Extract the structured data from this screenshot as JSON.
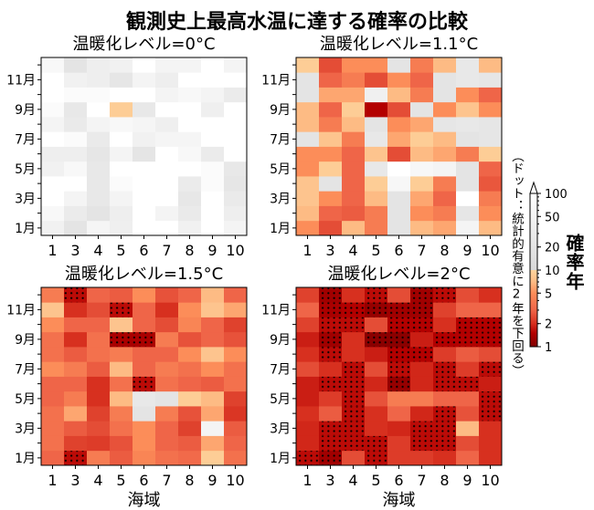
{
  "title": "観測史上最高水温に達する確率の比較",
  "colorbar": {
    "label": "確率年",
    "note": "（ドット：統計的有意に2年を下回る）",
    "ticks": [
      "1",
      "2",
      "5",
      "10",
      "20",
      "50",
      "100"
    ],
    "scale": "log",
    "range": [
      1,
      100
    ],
    "colors": {
      "1": "#7f0000",
      "1.5": "#b30000",
      "2": "#d7301f",
      "3": "#ef6548",
      "5": "#fc8d59",
      "7": "#fdbb84",
      "10": "#fdd49e",
      "10+": "#d9d9d9",
      "100": "#ffffff"
    }
  },
  "chart_data": [
    {
      "type": "heatmap",
      "title": "温暖化レベル=0°C",
      "xlabel": "",
      "x_ticks": [
        "1",
        "3",
        "4",
        "5",
        "6",
        "7",
        "8",
        "9",
        "10"
      ],
      "y_ticks": [
        "1月",
        "3月",
        "5月",
        "7月",
        "9月",
        "11月"
      ],
      "rows": "months 1-12 (bottom to top)",
      "values": [
        [
          42,
          20,
          55,
          38,
          100,
          100,
          42,
          100,
          50
        ],
        [
          65,
          30,
          20,
          35,
          100,
          50,
          28,
          100,
          35
        ],
        [
          100,
          50,
          25,
          50,
          100,
          100,
          24,
          100,
          28
        ],
        [
          100,
          100,
          25,
          80,
          100,
          100,
          30,
          80,
          22
        ],
        [
          42,
          65,
          25,
          100,
          100,
          100,
          100,
          80,
          25
        ],
        [
          35,
          35,
          22,
          50,
          21,
          100,
          65,
          30,
          100
        ],
        [
          100,
          80,
          28,
          100,
          42,
          55,
          55,
          100,
          100
        ],
        [
          50,
          28,
          50,
          65,
          55,
          38,
          100,
          100,
          100
        ],
        [
          80,
          25,
          100,
          9,
          25,
          100,
          100,
          38,
          100
        ],
        [
          100,
          80,
          80,
          100,
          100,
          50,
          65,
          50,
          30
        ],
        [
          100,
          42,
          35,
          22,
          50,
          35,
          100,
          100,
          100
        ],
        [
          65,
          20,
          35,
          42,
          100,
          50,
          50,
          100,
          50
        ]
      ],
      "significant": []
    },
    {
      "type": "heatmap",
      "title": "温暖化レベル=1.1°C",
      "xlabel": "",
      "x_ticks": [
        "1",
        "3",
        "4",
        "5",
        "6",
        "7",
        "8",
        "9",
        "10"
      ],
      "y_ticks": [
        "1月",
        "3月",
        "5月",
        "7月",
        "9月",
        "11月"
      ],
      "values": [
        [
          5,
          2.5,
          7,
          4,
          20,
          7,
          6,
          50,
          7
        ],
        [
          7,
          3,
          2.8,
          4,
          20,
          5,
          4,
          22,
          5
        ],
        [
          8,
          5,
          3,
          7,
          20,
          6,
          3,
          100,
          4
        ],
        [
          8,
          20,
          3,
          9,
          60,
          9,
          4,
          20,
          2.7
        ],
        [
          5,
          9,
          3,
          25,
          100,
          60,
          50,
          20,
          3
        ],
        [
          5,
          5,
          3,
          8,
          2.5,
          7,
          6,
          4,
          9
        ],
        [
          20,
          8,
          4,
          25,
          6,
          9,
          7,
          20,
          22
        ],
        [
          7,
          4,
          7,
          20,
          5,
          6,
          22,
          25,
          22
        ],
        [
          7,
          3,
          9,
          1.5,
          2.5,
          20,
          5,
          8,
          5
        ],
        [
          20,
          6,
          6,
          40,
          7,
          4,
          20,
          5,
          3
        ],
        [
          20,
          3,
          4,
          2.5,
          5,
          3,
          20,
          25,
          22
        ],
        [
          9,
          2.5,
          5,
          5,
          20,
          4,
          7,
          25,
          7
        ]
      ],
      "significant": []
    },
    {
      "type": "heatmap",
      "title": "温暖化レベル=1.5°C",
      "xlabel": "海域",
      "x_ticks": [
        "1",
        "3",
        "4",
        "5",
        "6",
        "7",
        "8",
        "9",
        "10"
      ],
      "y_ticks": [
        "1月",
        "3月",
        "5月",
        "7月",
        "9月",
        "11月"
      ],
      "values": [
        [
          3,
          1.6,
          4,
          2.8,
          4.5,
          3.5,
          3.2,
          9,
          3.5
        ],
        [
          3.5,
          2.3,
          2.2,
          2.6,
          5,
          3,
          2.8,
          6,
          3
        ],
        [
          3.5,
          2.8,
          2.5,
          3.5,
          5,
          3,
          2.3,
          50,
          2.8
        ],
        [
          3.5,
          6,
          2.3,
          4,
          20,
          4,
          2.6,
          6,
          2.1
        ],
        [
          3,
          4,
          2,
          7,
          25,
          20,
          9,
          7,
          2.3
        ],
        [
          3,
          3,
          2,
          3.5,
          1.6,
          3.5,
          3,
          2.8,
          3.5
        ],
        [
          5,
          4,
          2.8,
          7,
          3,
          4,
          3.5,
          5,
          3.5
        ],
        [
          3.5,
          2.8,
          3.5,
          4,
          3,
          3,
          5,
          8,
          5
        ],
        [
          3.5,
          2,
          3.5,
          1.4,
          1.4,
          4,
          2.6,
          3,
          2.6
        ],
        [
          5,
          3,
          3,
          8,
          3,
          2.5,
          4.5,
          3,
          2.3
        ],
        [
          8,
          2,
          2.5,
          1.6,
          3,
          2,
          5,
          8,
          6
        ],
        [
          4,
          1.6,
          3,
          2.8,
          5,
          2.6,
          3,
          7,
          3
        ]
      ],
      "significant": [
        [
          0,
          1,
          0,
          0,
          0,
          0,
          0,
          0,
          0
        ],
        [
          0,
          0,
          0,
          0,
          0,
          0,
          0,
          0,
          0
        ],
        [
          0,
          0,
          0,
          0,
          0,
          0,
          0,
          0,
          0
        ],
        [
          0,
          0,
          0,
          0,
          0,
          0,
          0,
          0,
          0
        ],
        [
          0,
          0,
          0,
          0,
          0,
          0,
          0,
          0,
          0
        ],
        [
          0,
          0,
          0,
          0,
          1,
          0,
          0,
          0,
          0
        ],
        [
          0,
          0,
          0,
          0,
          0,
          0,
          0,
          0,
          0
        ],
        [
          0,
          0,
          0,
          0,
          0,
          0,
          0,
          0,
          0
        ],
        [
          0,
          0,
          0,
          1,
          1,
          0,
          0,
          0,
          0
        ],
        [
          0,
          0,
          0,
          0,
          0,
          0,
          0,
          0,
          0
        ],
        [
          0,
          0,
          0,
          1,
          0,
          0,
          0,
          0,
          0
        ],
        [
          0,
          1,
          0,
          0,
          0,
          0,
          0,
          0,
          0
        ]
      ]
    },
    {
      "type": "heatmap",
      "title": "温暖化レベル=2°C",
      "xlabel": "海域",
      "x_ticks": [
        "1",
        "3",
        "4",
        "5",
        "6",
        "7",
        "8",
        "9",
        "10"
      ],
      "y_ticks": [
        "1月",
        "3月",
        "5月",
        "7月",
        "9月",
        "11月"
      ],
      "values": [
        [
          1.6,
          1.3,
          2.5,
          1.6,
          2.2,
          2.2,
          2,
          3,
          2
        ],
        [
          1.9,
          1.6,
          1.6,
          1.6,
          2.2,
          1.6,
          1.6,
          2.5,
          2
        ],
        [
          1.9,
          1.6,
          1.6,
          2,
          1.9,
          1.6,
          1.6,
          7,
          2
        ],
        [
          2,
          2.8,
          1.6,
          2,
          3,
          1.9,
          1.6,
          2.6,
          1.6
        ],
        [
          1.8,
          2.2,
          1.6,
          2.6,
          4,
          4,
          3,
          3,
          1.6
        ],
        [
          1.8,
          1.6,
          1.6,
          1.9,
          1.2,
          1.9,
          1.6,
          1.6,
          1.8
        ],
        [
          2.5,
          2,
          1.6,
          2.5,
          1.6,
          1.9,
          1.6,
          2.2,
          1.6
        ],
        [
          2,
          1.6,
          2,
          1.8,
          1.5,
          1.5,
          2.2,
          2.8,
          2.5
        ],
        [
          1.8,
          1.3,
          2,
          1.1,
          1.1,
          1.8,
          1.5,
          1.5,
          1.5
        ],
        [
          2.3,
          1.6,
          1.6,
          2.5,
          1.5,
          1.5,
          2,
          1.5,
          1.5
        ],
        [
          3,
          1.4,
          1.5,
          1.2,
          1.3,
          1.3,
          2.3,
          3,
          3
        ],
        [
          2.3,
          1.3,
          2,
          1.6,
          2.5,
          1.3,
          1.6,
          2.5,
          2
        ]
      ],
      "significant": [
        [
          1,
          1,
          0,
          1,
          0,
          0,
          0,
          0,
          0
        ],
        [
          0,
          1,
          1,
          1,
          0,
          1,
          1,
          0,
          0
        ],
        [
          0,
          1,
          1,
          0,
          0,
          1,
          1,
          0,
          0
        ],
        [
          0,
          0,
          1,
          0,
          0,
          0,
          1,
          0,
          1
        ],
        [
          0,
          0,
          1,
          0,
          0,
          0,
          0,
          0,
          1
        ],
        [
          0,
          1,
          1,
          0,
          1,
          0,
          1,
          1,
          0
        ],
        [
          0,
          0,
          1,
          0,
          1,
          0,
          1,
          0,
          1
        ],
        [
          0,
          1,
          0,
          0,
          1,
          1,
          0,
          0,
          0
        ],
        [
          0,
          1,
          0,
          1,
          1,
          0,
          1,
          1,
          1
        ],
        [
          0,
          1,
          1,
          0,
          1,
          1,
          0,
          1,
          1
        ],
        [
          0,
          1,
          1,
          1,
          1,
          1,
          0,
          0,
          0
        ],
        [
          0,
          1,
          0,
          1,
          0,
          1,
          1,
          0,
          0
        ]
      ]
    }
  ]
}
